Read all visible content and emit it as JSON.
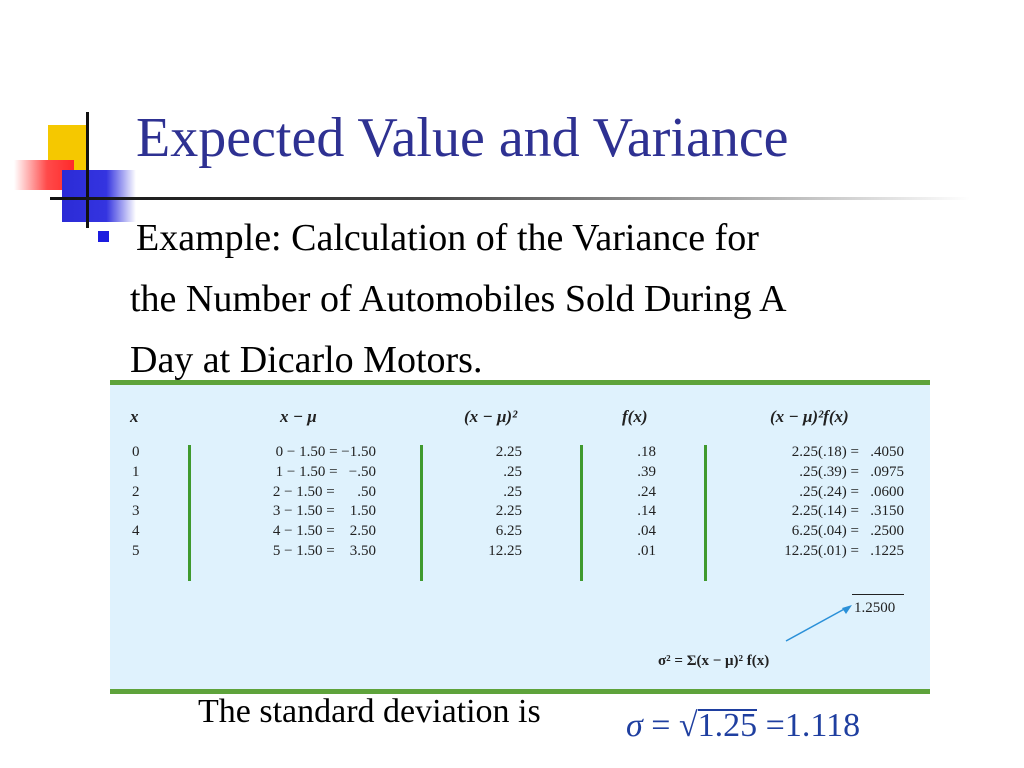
{
  "slide": {
    "title": "Expected Value and Variance",
    "bullet_line1": "Example: Calculation of the Variance for",
    "bullet_line2": "the Number of Automobiles Sold During A",
    "bullet_line3": "Day at  Dicarlo Motors.",
    "accent_colors": {
      "title": "#2e3192",
      "bullet": "#1c1cdf",
      "table_border": "#5ea33b",
      "table_bg": "#dff2fd"
    }
  },
  "table": {
    "headers": [
      "x",
      "x − μ",
      "(x − μ)²",
      "f(x)",
      "(x − μ)²f(x)"
    ],
    "rows": [
      {
        "x": "0",
        "dev": "0 − 1.50 = −1.50",
        "sq": "2.25",
        "fx": ".18",
        "prod": "2.25(.18) =   .4050"
      },
      {
        "x": "1",
        "dev": "1 − 1.50 =   −.50",
        "sq": ".25",
        "fx": ".39",
        "prod": ".25(.39) =   .0975"
      },
      {
        "x": "2",
        "dev": "2 − 1.50 =      .50",
        "sq": ".25",
        "fx": ".24",
        "prod": ".25(.24) =   .0600"
      },
      {
        "x": "3",
        "dev": "3 − 1.50 =    1.50",
        "sq": "2.25",
        "fx": ".14",
        "prod": "2.25(.14) =   .3150"
      },
      {
        "x": "4",
        "dev": "4 − 1.50 =    2.50",
        "sq": "6.25",
        "fx": ".04",
        "prod": "6.25(.04) =   .2500"
      },
      {
        "x": "5",
        "dev": "5 − 1.50 =    3.50",
        "sq": "12.25",
        "fx": ".01",
        "prod": "12.25(.01) =   .1225"
      }
    ],
    "total": "1.2500",
    "formula": "σ² = Σ(x − μ)² f(x)"
  },
  "standard_deviation": {
    "label": "The standard deviation is",
    "sigma": "σ",
    "equals": "=",
    "radicand": "1.25",
    "result": "1.118"
  }
}
